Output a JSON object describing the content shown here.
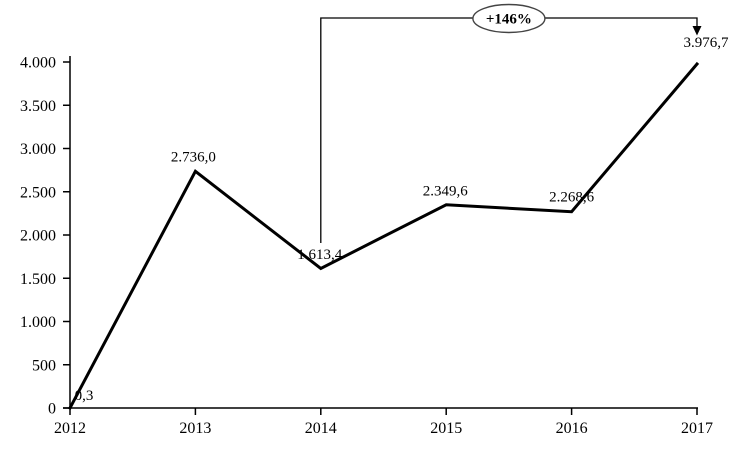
{
  "chart_data": {
    "type": "line",
    "title": "",
    "xlabel": "",
    "ylabel": "",
    "categories": [
      "2012",
      "2013",
      "2014",
      "2015",
      "2016",
      "2017"
    ],
    "series": [
      {
        "name": "value",
        "values": [
          0.3,
          2736.0,
          1613.4,
          2349.6,
          2268.6,
          3976.7
        ]
      }
    ],
    "point_labels": [
      "0,3",
      "2.736,0",
      "1.613,4",
      "2.349,6",
      "2.268,6",
      "3.976,7"
    ],
    "y_ticks": [
      0,
      500,
      1000,
      1500,
      2000,
      2500,
      3000,
      3500,
      4000
    ],
    "y_tick_labels": [
      "0",
      "500",
      "1.000",
      "1.500",
      "2.000",
      "2.500",
      "3.000",
      "3.500",
      "4.000"
    ],
    "ylim": [
      0,
      4000
    ],
    "grid": false,
    "legend": false,
    "annotation": {
      "label": "+146%",
      "from_category": "2014",
      "to_category": "2017",
      "shape": "ellipse-on-bracket-with-arrow"
    },
    "colors": {
      "line": "#000000",
      "axis": "#000000",
      "text": "#000000",
      "annotation_ellipse_stroke": "#444444",
      "background": "#ffffff"
    }
  }
}
